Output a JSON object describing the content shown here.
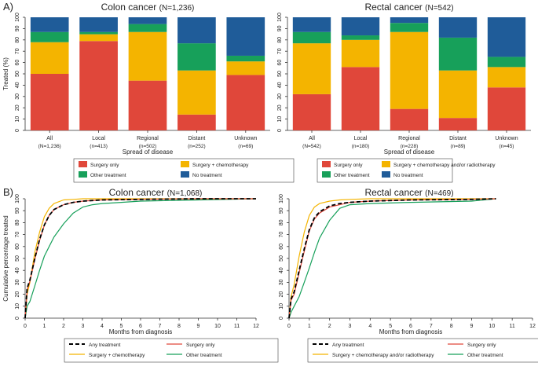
{
  "colors": {
    "surgery": "#E0473A",
    "chemo": "#F4B400",
    "other": "#17A05A",
    "none": "#1F5C99",
    "any": "#000000",
    "line_surgery": "#E0473A",
    "line_chemo": "#F4B400",
    "line_other": "#17A05A"
  },
  "panel_labels": {
    "a": "A)",
    "b": "B)"
  },
  "chart_data": [
    {
      "type": "bar",
      "stacked": true,
      "title": "Colon cancer (N=1,236)",
      "ylabel": "Treated (%)",
      "xlabel": "Spread of disease",
      "ylim": [
        0,
        100
      ],
      "yticks": [
        0,
        10,
        20,
        30,
        40,
        50,
        60,
        70,
        80,
        90,
        100
      ],
      "categories": [
        "All",
        "Local",
        "Regional",
        "Distant",
        "Unknown"
      ],
      "sublabels": [
        "(N=1,236)",
        "(n=413)",
        "(n=502)",
        "(n=252)",
        "(n=69)"
      ],
      "series": [
        {
          "name": "Surgery only",
          "key": "surgery",
          "values": [
            50,
            79,
            44,
            14,
            49
          ]
        },
        {
          "name": "Surgery + chemotherapy",
          "key": "chemo",
          "values": [
            28,
            6,
            43,
            39,
            12
          ]
        },
        {
          "name": "Other treatment",
          "key": "other",
          "values": [
            9,
            2,
            7,
            24,
            5
          ]
        },
        {
          "name": "No treatment",
          "key": "none",
          "values": [
            13,
            13,
            6,
            23,
            34
          ]
        }
      ],
      "legend": [
        "Surgery only",
        "Surgery + chemotherapy",
        "Other treatment",
        "No treatment"
      ]
    },
    {
      "type": "bar",
      "stacked": true,
      "title": "Rectal cancer (N=542)",
      "ylabel": "",
      "xlabel": "Spread of disease",
      "ylim": [
        0,
        100
      ],
      "yticks": [
        0,
        10,
        20,
        30,
        40,
        50,
        60,
        70,
        80,
        90,
        100
      ],
      "categories": [
        "All",
        "Local",
        "Regional",
        "Distant",
        "Unknown"
      ],
      "sublabels": [
        "(N=542)",
        "(n=180)",
        "(n=228)",
        "(n=89)",
        "(n=45)"
      ],
      "series": [
        {
          "name": "Surgery only",
          "key": "surgery",
          "values": [
            32,
            56,
            19,
            11,
            38
          ]
        },
        {
          "name": "Surgery + chemotherapy and/or radiotherapy",
          "key": "chemo",
          "values": [
            45,
            24,
            68,
            42,
            18
          ]
        },
        {
          "name": "Other treatment",
          "key": "other",
          "values": [
            10,
            4,
            8,
            29,
            9
          ]
        },
        {
          "name": "No treatment",
          "key": "none",
          "values": [
            13,
            16,
            5,
            18,
            35
          ]
        }
      ],
      "legend": [
        "Surgery only",
        "Surgery + chemotherapy and/or radiotherapy",
        "Other treatment",
        "No treatment"
      ]
    },
    {
      "type": "line",
      "title": "Colon cancer (N=1,068)",
      "ylabel": "Cumulative percentage treated",
      "xlabel": "Months from diagnosis",
      "xlim": [
        0,
        12
      ],
      "ylim": [
        0,
        100
      ],
      "xticks": [
        0,
        1,
        2,
        3,
        4,
        5,
        6,
        7,
        8,
        9,
        10,
        11,
        12
      ],
      "yticks": [
        0,
        10,
        20,
        30,
        40,
        50,
        60,
        70,
        80,
        90,
        100
      ],
      "series": [
        {
          "name": "Any treatment",
          "key": "any",
          "dash": true,
          "x": [
            0,
            0.1,
            0.25,
            0.5,
            0.75,
            1,
            1.25,
            1.5,
            2,
            2.5,
            3,
            4,
            6,
            9,
            12
          ],
          "y": [
            0,
            25,
            32,
            50,
            66,
            78,
            86,
            91,
            95,
            97,
            98,
            99,
            99.5,
            100,
            100
          ]
        },
        {
          "name": "Surgery only",
          "key": "line_surgery",
          "dash": false,
          "x": [
            0,
            0.1,
            0.25,
            0.5,
            0.75,
            1,
            1.25,
            1.5,
            2,
            2.5,
            3,
            4,
            6,
            9,
            12
          ],
          "y": [
            0,
            24,
            31,
            49,
            65,
            78,
            86,
            91,
            95,
            97,
            98,
            99,
            99.5,
            100,
            100
          ]
        },
        {
          "name": "Surgery + chemotherapy",
          "key": "line_chemo",
          "dash": false,
          "x": [
            0,
            0.1,
            0.25,
            0.5,
            0.75,
            1,
            1.25,
            1.5,
            2,
            2.5,
            3,
            4,
            6,
            9,
            12
          ],
          "y": [
            0,
            20,
            30,
            55,
            72,
            85,
            92,
            96,
            99,
            99.5,
            100,
            100,
            100,
            100,
            100
          ]
        },
        {
          "name": "Other treatment",
          "key": "line_other",
          "dash": false,
          "x": [
            0,
            0.1,
            0.25,
            0.5,
            0.75,
            1,
            1.25,
            1.5,
            2,
            2.5,
            3,
            3.5,
            4,
            5,
            6,
            9,
            12
          ],
          "y": [
            0,
            10,
            14,
            27,
            40,
            52,
            60,
            68,
            79,
            88,
            93,
            95,
            96,
            97,
            98,
            99,
            100
          ]
        }
      ],
      "legend": [
        "Any treatment",
        "Surgery only",
        "Surgery + chemotherapy",
        "Other treatment"
      ]
    },
    {
      "type": "line",
      "title": "Rectal cancer (N=469)",
      "ylabel": "",
      "xlabel": "Months from diagnosis",
      "xlim": [
        0,
        12
      ],
      "ylim": [
        0,
        100
      ],
      "xticks": [
        0,
        1,
        2,
        3,
        4,
        5,
        6,
        7,
        8,
        9,
        10,
        11,
        12
      ],
      "yticks": [
        0,
        10,
        20,
        30,
        40,
        50,
        60,
        70,
        80,
        90,
        100
      ],
      "series": [
        {
          "name": "Any treatment",
          "key": "any",
          "dash": true,
          "x": [
            0,
            0.1,
            0.25,
            0.5,
            0.75,
            1,
            1.25,
            1.5,
            2,
            2.5,
            3,
            4,
            6,
            9,
            10.2
          ],
          "y": [
            0,
            16,
            22,
            40,
            58,
            74,
            84,
            89,
            94,
            96,
            97,
            98,
            99,
            99.5,
            100
          ]
        },
        {
          "name": "Surgery only",
          "key": "line_surgery",
          "dash": false,
          "x": [
            0,
            0.1,
            0.25,
            0.5,
            0.75,
            1,
            1.25,
            1.5,
            2,
            2.5,
            3,
            4,
            6,
            9,
            10.2
          ],
          "y": [
            0,
            15,
            20,
            38,
            56,
            73,
            83,
            88,
            93,
            95,
            97,
            98,
            99,
            99.5,
            100
          ]
        },
        {
          "name": "Surgery + chemotherapy and/or radiotherapy",
          "key": "line_chemo",
          "dash": false,
          "x": [
            0,
            0.1,
            0.25,
            0.5,
            0.75,
            1,
            1.25,
            1.5,
            2,
            2.5,
            3,
            4,
            6,
            9,
            10.2
          ],
          "y": [
            0,
            18,
            28,
            52,
            72,
            86,
            93,
            96,
            98,
            99,
            99.5,
            100,
            100,
            100,
            100
          ]
        },
        {
          "name": "Other treatment",
          "key": "line_other",
          "dash": false,
          "x": [
            0,
            0.1,
            0.25,
            0.5,
            0.75,
            1,
            1.25,
            1.5,
            2,
            2.5,
            3,
            4,
            6,
            9,
            10.2
          ],
          "y": [
            0,
            5,
            10,
            18,
            30,
            42,
            55,
            67,
            82,
            92,
            95,
            96,
            97,
            98,
            100
          ]
        }
      ],
      "legend": [
        "Any treatment",
        "Surgery only",
        "Surgery + chemotherapy and/or radiotherapy",
        "Other treatment"
      ]
    }
  ]
}
